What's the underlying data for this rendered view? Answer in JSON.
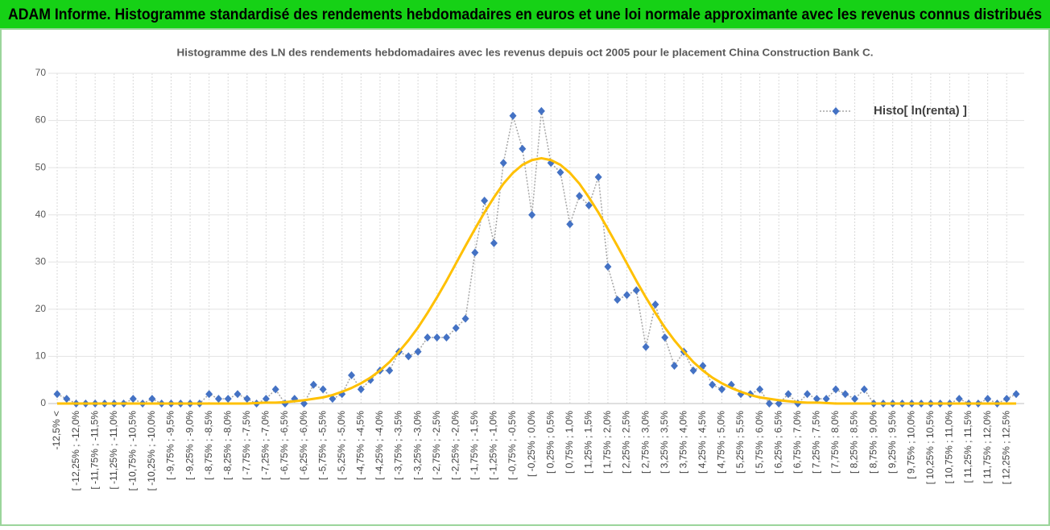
{
  "header": {
    "title": "ADAM Informe. Histogramme standardisé des rendements hebdomadaires en euros et une loi normale approximante avec les revenus connus distribués"
  },
  "chart_data": {
    "type": "line",
    "title": "Histogramme des LN des rendements hebdomadaires avec les revenus depuis oct 2005  pour le placement China Construction Bank C.",
    "categories": [
      "-12,5% <",
      null,
      "[ -12,25% ; -12,0%",
      null,
      "[ -11,75% ; -11,5%",
      null,
      "[ -11,25% ; -11,0%",
      null,
      "[ -10,75% ; -10,5%",
      null,
      "[ -10,25% ; -10,0%",
      null,
      "[ -9,75% ; -9,5%",
      null,
      "[ -9,25% ; -9,0%",
      null,
      "[ -8,75% ; -8,5%",
      null,
      "[ -8,25% ; -8,0%",
      null,
      "[ -7,75% ; -7,5%",
      null,
      "[ -7,25% ; -7,0%",
      null,
      "[ -6,75% ; -6,5%",
      null,
      "[ -6,25% ; -6,0%",
      null,
      "[ -5,75% ; -5,5%",
      null,
      "[ -5,25% ; -5,0%",
      null,
      "[ -4,75% ; -4,5%",
      null,
      "[ -4,25% ; -4,0%",
      null,
      "[ -3,75% ; -3,5%",
      null,
      "[ -3,25% ; -3,0%",
      null,
      "[ -2,75% ; -2,5%",
      null,
      "[ -2,25% ; -2,0%",
      null,
      "[ -1,75% ; -1,5%",
      null,
      "[ -1,25% ; -1,0%",
      null,
      "[ -0,75% ; -0,5%",
      null,
      "[ -0,25% ; 0,0%",
      null,
      "[ 0,25% ; 0,5%",
      null,
      "[ 0,75% ; 1,0%",
      null,
      "[ 1,25% ; 1,5%",
      null,
      "[ 1,75% ; 2,0%",
      null,
      "[ 2,25% ; 2,5%",
      null,
      "[ 2,75% ; 3,0%",
      null,
      "[ 3,25% ; 3,5%",
      null,
      "[ 3,75% ; 4,0%",
      null,
      "[ 4,25% ; 4,5%",
      null,
      "[ 4,75% ; 5,0%",
      null,
      "[ 5,25% ; 5,5%",
      null,
      "[ 5,75% ; 6,0%",
      null,
      "[ 6,25% ; 6,5%",
      null,
      "[ 6,75% ; 7,0%",
      null,
      "[ 7,25% ; 7,5%",
      null,
      "[ 7,75% ; 8,0%",
      null,
      "[ 8,25% ; 8,5%",
      null,
      "[ 8,75% ; 9,0%",
      null,
      "[ 9,25% ; 9,5%",
      null,
      "[ 9,75% ; 10,0%",
      null,
      "[ 10,25% ; 10,5%",
      null,
      "[ 10,75% ; 11,0%",
      null,
      "[ 11,25% ; 11,5%",
      null,
      "[ 11,75% ; 12,0%",
      null,
      "[ 12,25% ; 12,5%",
      null
    ],
    "series": [
      {
        "name": "Histo[ ln(renta) ]",
        "color": "#4472c4",
        "line_color": "#a5a5a5",
        "marker": "diamond",
        "values": [
          2,
          1,
          0,
          0,
          0,
          0,
          0,
          0,
          1,
          0,
          1,
          0,
          0,
          0,
          0,
          0,
          2,
          1,
          1,
          2,
          1,
          0,
          1,
          3,
          0,
          1,
          0,
          4,
          3,
          1,
          2,
          6,
          3,
          5,
          7,
          7,
          11,
          10,
          11,
          14,
          14,
          14,
          16,
          18,
          32,
          43,
          34,
          51,
          61,
          54,
          40,
          62,
          51,
          49,
          38,
          44,
          42,
          48,
          29,
          22,
          23,
          24,
          12,
          21,
          14,
          8,
          11,
          7,
          8,
          4,
          3,
          4,
          2,
          2,
          3,
          0,
          0,
          2,
          0,
          2,
          1,
          1,
          3,
          2,
          1,
          3,
          0,
          0,
          0,
          0,
          0,
          0,
          0,
          0,
          0,
          1,
          0,
          0,
          1,
          0,
          1,
          2
        ]
      },
      {
        "color": "#ffc000",
        "marker": "none",
        "values": [
          0,
          0,
          0,
          0,
          0,
          0,
          0,
          0,
          0,
          0,
          0,
          0,
          0,
          0,
          0,
          0,
          0,
          0,
          0,
          0,
          0,
          0.1,
          0.2,
          0.2,
          0.3,
          0.5,
          0.7,
          1.0,
          1.3,
          1.8,
          2.5,
          3.3,
          4.3,
          5.5,
          7.0,
          8.8,
          11.0,
          13.4,
          16.1,
          19.2,
          22.5,
          26.0,
          29.7,
          33.4,
          37.0,
          40.5,
          43.7,
          46.6,
          48.9,
          50.6,
          51.6,
          52,
          51.6,
          50.6,
          48.9,
          46.6,
          43.7,
          40.5,
          37.0,
          33.4,
          29.7,
          26.0,
          22.5,
          19.2,
          16.1,
          13.4,
          11.0,
          8.8,
          7.0,
          5.5,
          4.3,
          3.3,
          2.5,
          1.8,
          1.3,
          1.0,
          0.7,
          0.5,
          0.3,
          0.2,
          0.2,
          0.1,
          0,
          0,
          0,
          0,
          0,
          0,
          0,
          0,
          0,
          0,
          0,
          0,
          0,
          0,
          0,
          0,
          0,
          0,
          0,
          0
        ]
      }
    ],
    "ylim": [
      0,
      70
    ],
    "yticks": [
      0,
      10,
      20,
      30,
      40,
      50,
      60,
      70
    ],
    "grid": true,
    "legend": "upper right"
  }
}
